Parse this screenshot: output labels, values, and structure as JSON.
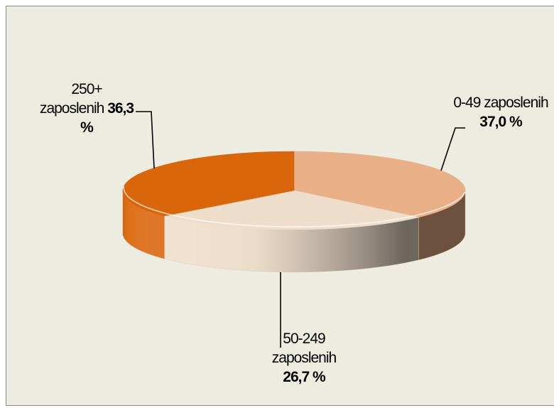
{
  "chart_data": {
    "type": "pie",
    "three_d": true,
    "legend": false,
    "categories": [
      "0-49 zaposlenih",
      "50-249 zaposlenih",
      "250+ zaposlenih"
    ],
    "values": [
      37.0,
      26.7,
      36.3
    ],
    "value_labels": [
      "37,0 %",
      "26,7 %",
      "36,3 %"
    ],
    "colors": [
      "#E9AF86",
      "#EEDDCB",
      "#DA660C"
    ],
    "background": "#EEECE1"
  }
}
